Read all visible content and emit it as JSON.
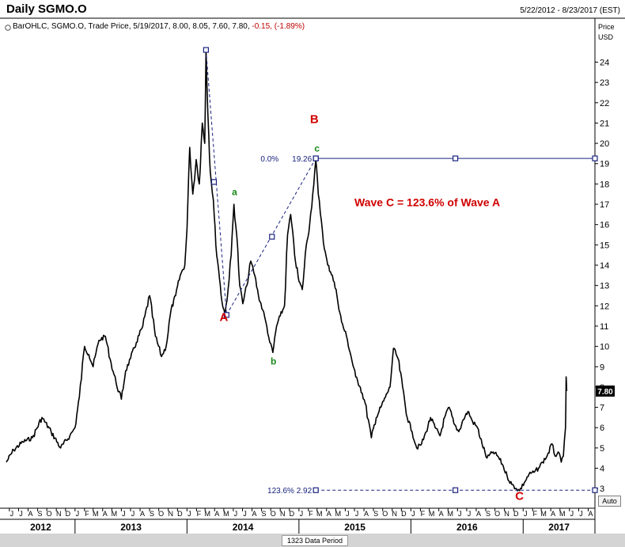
{
  "header": {
    "title": "Daily SGMO.O",
    "date_range": "5/22/2012 - 8/23/2017 (EST)"
  },
  "legend": {
    "series_label": "BarOHLC, SGMO.O, Trade Price, 5/19/2017, 8.00, 8.05, 7.60, 7.80,",
    "change": "-0.15, (-1.89%)"
  },
  "axis": {
    "price_label": "Price",
    "currency_label": "USD",
    "auto_button": "Auto",
    "last_price_label": "7.80"
  },
  "footer": {
    "period_label": "1323 Data Period"
  },
  "colors": {
    "price_line": "#000000",
    "wave_letters": "#d00000",
    "sub_wave_letters": "#1a8a1a",
    "fib_lines": "#1a237e",
    "annotation_text": "#d00000",
    "last_price_box": "#000000"
  },
  "chart_data": {
    "type": "line",
    "title": "Daily SGMO.O",
    "xlabel": "",
    "ylabel": "Price USD",
    "ylim": [
      2.5,
      25.5
    ],
    "y_ticks": [
      3,
      4,
      5,
      6,
      7,
      8,
      9,
      10,
      11,
      12,
      13,
      14,
      15,
      16,
      17,
      18,
      19,
      20,
      21,
      22,
      23,
      24
    ],
    "x_range": [
      "2012-05-22",
      "2017-08-23"
    ],
    "month_ticks": [
      {
        "date": "2012-06-01",
        "label": "J"
      },
      {
        "date": "2012-07-01",
        "label": "J"
      },
      {
        "date": "2012-08-01",
        "label": "A"
      },
      {
        "date": "2012-09-01",
        "label": "S"
      },
      {
        "date": "2012-10-01",
        "label": "O"
      },
      {
        "date": "2012-11-01",
        "label": "N"
      },
      {
        "date": "2012-12-01",
        "label": "D"
      },
      {
        "date": "2013-01-01",
        "label": "J"
      },
      {
        "date": "2013-02-01",
        "label": "F"
      },
      {
        "date": "2013-03-01",
        "label": "M"
      },
      {
        "date": "2013-04-01",
        "label": "A"
      },
      {
        "date": "2013-05-01",
        "label": "M"
      },
      {
        "date": "2013-06-01",
        "label": "J"
      },
      {
        "date": "2013-07-01",
        "label": "J"
      },
      {
        "date": "2013-08-01",
        "label": "A"
      },
      {
        "date": "2013-09-01",
        "label": "S"
      },
      {
        "date": "2013-10-01",
        "label": "O"
      },
      {
        "date": "2013-11-01",
        "label": "N"
      },
      {
        "date": "2013-12-01",
        "label": "D"
      },
      {
        "date": "2014-01-01",
        "label": "J"
      },
      {
        "date": "2014-02-01",
        "label": "F"
      },
      {
        "date": "2014-03-01",
        "label": "M"
      },
      {
        "date": "2014-04-01",
        "label": "A"
      },
      {
        "date": "2014-05-01",
        "label": "M"
      },
      {
        "date": "2014-06-01",
        "label": "J"
      },
      {
        "date": "2014-07-01",
        "label": "J"
      },
      {
        "date": "2014-08-01",
        "label": "A"
      },
      {
        "date": "2014-09-01",
        "label": "S"
      },
      {
        "date": "2014-10-01",
        "label": "O"
      },
      {
        "date": "2014-11-01",
        "label": "N"
      },
      {
        "date": "2014-12-01",
        "label": "D"
      },
      {
        "date": "2015-01-01",
        "label": "J"
      },
      {
        "date": "2015-02-01",
        "label": "F"
      },
      {
        "date": "2015-03-01",
        "label": "M"
      },
      {
        "date": "2015-04-01",
        "label": "A"
      },
      {
        "date": "2015-05-01",
        "label": "M"
      },
      {
        "date": "2015-06-01",
        "label": "J"
      },
      {
        "date": "2015-07-01",
        "label": "J"
      },
      {
        "date": "2015-08-01",
        "label": "A"
      },
      {
        "date": "2015-09-01",
        "label": "S"
      },
      {
        "date": "2015-10-01",
        "label": "O"
      },
      {
        "date": "2015-11-01",
        "label": "N"
      },
      {
        "date": "2015-12-01",
        "label": "D"
      },
      {
        "date": "2016-01-01",
        "label": "J"
      },
      {
        "date": "2016-02-01",
        "label": "F"
      },
      {
        "date": "2016-03-01",
        "label": "M"
      },
      {
        "date": "2016-04-01",
        "label": "A"
      },
      {
        "date": "2016-05-01",
        "label": "M"
      },
      {
        "date": "2016-06-01",
        "label": "J"
      },
      {
        "date": "2016-07-01",
        "label": "J"
      },
      {
        "date": "2016-08-01",
        "label": "A"
      },
      {
        "date": "2016-09-01",
        "label": "S"
      },
      {
        "date": "2016-10-01",
        "label": "O"
      },
      {
        "date": "2016-11-01",
        "label": "N"
      },
      {
        "date": "2016-12-01",
        "label": "D"
      },
      {
        "date": "2017-01-01",
        "label": "J"
      },
      {
        "date": "2017-02-01",
        "label": "F"
      },
      {
        "date": "2017-03-01",
        "label": "M"
      },
      {
        "date": "2017-04-01",
        "label": "A"
      },
      {
        "date": "2017-05-01",
        "label": "M"
      },
      {
        "date": "2017-06-01",
        "label": "J"
      },
      {
        "date": "2017-07-01",
        "label": "J"
      },
      {
        "date": "2017-08-01",
        "label": "A"
      }
    ],
    "year_labels": [
      {
        "label": "2012",
        "from": "2012-05-22",
        "to": "2013-01-01"
      },
      {
        "label": "2013",
        "from": "2013-01-01",
        "to": "2014-01-01"
      },
      {
        "label": "2014",
        "from": "2014-01-01",
        "to": "2015-01-01"
      },
      {
        "label": "2015",
        "from": "2015-01-01",
        "to": "2016-01-01"
      },
      {
        "label": "2016",
        "from": "2016-01-01",
        "to": "2017-01-01"
      },
      {
        "label": "2017",
        "from": "2017-01-01",
        "to": "2017-08-23"
      }
    ],
    "series": [
      {
        "points": [
          [
            "2012-05-22",
            4.3
          ],
          [
            "2012-06-15",
            4.9
          ],
          [
            "2012-07-15",
            5.3
          ],
          [
            "2012-08-15",
            5.5
          ],
          [
            "2012-09-15",
            6.5
          ],
          [
            "2012-10-15",
            5.8
          ],
          [
            "2012-11-15",
            5.0
          ],
          [
            "2012-12-15",
            5.6
          ],
          [
            "2013-01-01",
            6.0
          ],
          [
            "2013-01-15",
            7.5
          ],
          [
            "2013-02-01",
            10.0
          ],
          [
            "2013-02-15",
            9.6
          ],
          [
            "2013-03-01",
            9.0
          ],
          [
            "2013-03-20",
            10.3
          ],
          [
            "2013-04-10",
            10.5
          ],
          [
            "2013-04-25",
            9.4
          ],
          [
            "2013-05-15",
            8.2
          ],
          [
            "2013-06-01",
            7.4
          ],
          [
            "2013-06-15",
            8.8
          ],
          [
            "2013-07-01",
            9.4
          ],
          [
            "2013-07-20",
            10.2
          ],
          [
            "2013-08-10",
            11.0
          ],
          [
            "2013-09-01",
            12.5
          ],
          [
            "2013-09-20",
            10.5
          ],
          [
            "2013-10-10",
            9.5
          ],
          [
            "2013-10-25",
            10.0
          ],
          [
            "2013-11-10",
            11.8
          ],
          [
            "2013-11-25",
            12.5
          ],
          [
            "2013-12-10",
            13.5
          ],
          [
            "2013-12-25",
            14.0
          ],
          [
            "2014-01-01",
            15.8
          ],
          [
            "2014-01-10",
            19.8
          ],
          [
            "2014-01-20",
            17.5
          ],
          [
            "2014-01-31",
            19.2
          ],
          [
            "2014-02-10",
            18.0
          ],
          [
            "2014-02-20",
            21.0
          ],
          [
            "2014-02-28",
            20.0
          ],
          [
            "2014-03-04",
            24.6
          ],
          [
            "2014-03-10",
            21.5
          ],
          [
            "2014-03-18",
            18.6
          ],
          [
            "2014-03-28",
            17.2
          ],
          [
            "2014-04-05",
            15.0
          ],
          [
            "2014-04-14",
            13.8
          ],
          [
            "2014-04-25",
            12.2
          ],
          [
            "2014-05-05",
            11.6
          ],
          [
            "2014-05-15",
            12.8
          ],
          [
            "2014-05-25",
            14.5
          ],
          [
            "2014-06-03",
            17.0
          ],
          [
            "2014-06-12",
            15.5
          ],
          [
            "2014-06-22",
            13.0
          ],
          [
            "2014-07-02",
            12.1
          ],
          [
            "2014-07-15",
            13.0
          ],
          [
            "2014-07-28",
            14.2
          ],
          [
            "2014-08-10",
            13.5
          ],
          [
            "2014-08-22",
            12.5
          ],
          [
            "2014-09-05",
            11.8
          ],
          [
            "2014-09-18",
            11.0
          ],
          [
            "2014-09-28",
            10.2
          ],
          [
            "2014-10-08",
            9.7
          ],
          [
            "2014-10-20",
            11.0
          ],
          [
            "2014-11-01",
            11.5
          ],
          [
            "2014-11-15",
            12.0
          ],
          [
            "2014-11-25",
            15.5
          ],
          [
            "2014-12-05",
            16.5
          ],
          [
            "2014-12-18",
            14.5
          ],
          [
            "2015-01-01",
            13.2
          ],
          [
            "2015-01-12",
            12.8
          ],
          [
            "2015-01-25",
            15.0
          ],
          [
            "2015-02-05",
            16.0
          ],
          [
            "2015-02-15",
            17.5
          ],
          [
            "2015-02-25",
            19.2
          ],
          [
            "2015-03-05",
            17.5
          ],
          [
            "2015-03-15",
            16.2
          ],
          [
            "2015-03-25",
            14.8
          ],
          [
            "2015-04-05",
            14.0
          ],
          [
            "2015-04-20",
            13.5
          ],
          [
            "2015-05-05",
            12.5
          ],
          [
            "2015-05-20",
            11.2
          ],
          [
            "2015-06-05",
            10.5
          ],
          [
            "2015-06-20",
            9.5
          ],
          [
            "2015-07-05",
            8.5
          ],
          [
            "2015-07-20",
            8.0
          ],
          [
            "2015-08-05",
            7.2
          ],
          [
            "2015-08-25",
            5.5
          ],
          [
            "2015-09-10",
            6.5
          ],
          [
            "2015-09-25",
            7.0
          ],
          [
            "2015-10-10",
            7.5
          ],
          [
            "2015-10-25",
            8.0
          ],
          [
            "2015-11-05",
            9.9
          ],
          [
            "2015-11-20",
            9.4
          ],
          [
            "2015-12-05",
            8.0
          ],
          [
            "2015-12-20",
            6.5
          ],
          [
            "2016-01-05",
            5.8
          ],
          [
            "2016-01-20",
            5.0
          ],
          [
            "2016-02-05",
            5.2
          ],
          [
            "2016-02-20",
            5.8
          ],
          [
            "2016-03-05",
            6.5
          ],
          [
            "2016-03-20",
            6.0
          ],
          [
            "2016-04-05",
            5.6
          ],
          [
            "2016-04-20",
            6.5
          ],
          [
            "2016-05-05",
            7.0
          ],
          [
            "2016-05-20",
            6.2
          ],
          [
            "2016-06-05",
            5.8
          ],
          [
            "2016-06-20",
            6.4
          ],
          [
            "2016-07-05",
            6.8
          ],
          [
            "2016-07-20",
            6.3
          ],
          [
            "2016-08-05",
            6.0
          ],
          [
            "2016-08-20",
            5.2
          ],
          [
            "2016-09-05",
            4.5
          ],
          [
            "2016-09-25",
            4.8
          ],
          [
            "2016-10-10",
            4.6
          ],
          [
            "2016-10-25",
            4.2
          ],
          [
            "2016-11-10",
            3.6
          ],
          [
            "2016-11-25",
            3.2
          ],
          [
            "2016-12-10",
            3.0
          ],
          [
            "2016-12-20",
            2.9
          ],
          [
            "2017-01-05",
            3.3
          ],
          [
            "2017-01-20",
            3.7
          ],
          [
            "2017-02-05",
            3.8
          ],
          [
            "2017-02-20",
            4.0
          ],
          [
            "2017-03-05",
            4.3
          ],
          [
            "2017-03-20",
            4.6
          ],
          [
            "2017-04-05",
            5.2
          ],
          [
            "2017-04-15",
            4.6
          ],
          [
            "2017-04-25",
            4.8
          ],
          [
            "2017-05-05",
            4.3
          ],
          [
            "2017-05-12",
            4.6
          ],
          [
            "2017-05-19",
            6.0
          ],
          [
            "2017-05-21",
            8.5
          ],
          [
            "2017-05-23",
            7.8
          ]
        ]
      }
    ],
    "wave_labels": [
      {
        "text": "A",
        "date": "2014-05-01",
        "value": 11.25,
        "role": "major"
      },
      {
        "text": "B",
        "date": "2015-02-20",
        "value": 21.0,
        "role": "major"
      },
      {
        "text": "C",
        "date": "2016-12-20",
        "value": 2.45,
        "role": "major"
      },
      {
        "text": "a",
        "date": "2014-06-05",
        "value": 17.45,
        "role": "minor"
      },
      {
        "text": "b",
        "date": "2014-10-10",
        "value": 9.1,
        "role": "minor"
      },
      {
        "text": "c",
        "date": "2015-03-01",
        "value": 19.6,
        "role": "minor"
      }
    ],
    "annotations": [
      {
        "text": "Wave C = 123.6% of  Wave A",
        "date": "2015-07-01",
        "value": 16.9
      }
    ],
    "wave_lines": [
      {
        "from": [
          "2014-03-04",
          24.6
        ],
        "to": [
          "2014-05-10",
          11.55
        ]
      },
      {
        "from": [
          "2014-05-10",
          11.55
        ],
        "to": [
          "2015-02-25",
          19.26
        ]
      }
    ],
    "wave_line_handles": [
      [
        "2014-03-04",
        24.6
      ],
      [
        "2014-03-30",
        18.1
      ],
      [
        "2014-05-10",
        11.55
      ],
      [
        "2014-10-05",
        15.4
      ],
      [
        "2015-02-25",
        19.26
      ]
    ],
    "fib_levels": [
      {
        "label": "0.0%",
        "value_label": "19.26",
        "value": 19.26,
        "from": "2015-02-25",
        "to": "2017-08-23",
        "style": "solid",
        "handles": [
          "2015-02-25",
          "2016-05-25",
          "2017-08-23"
        ]
      },
      {
        "label": "123.6%",
        "value_label": "2.92",
        "value": 2.92,
        "from": "2015-02-25",
        "to": "2017-08-23",
        "style": "dashed",
        "handles": [
          "2015-02-25",
          "2016-05-25",
          "2017-08-23"
        ]
      }
    ],
    "last_price": 7.8,
    "grid": false,
    "legend_position": "top-left"
  }
}
